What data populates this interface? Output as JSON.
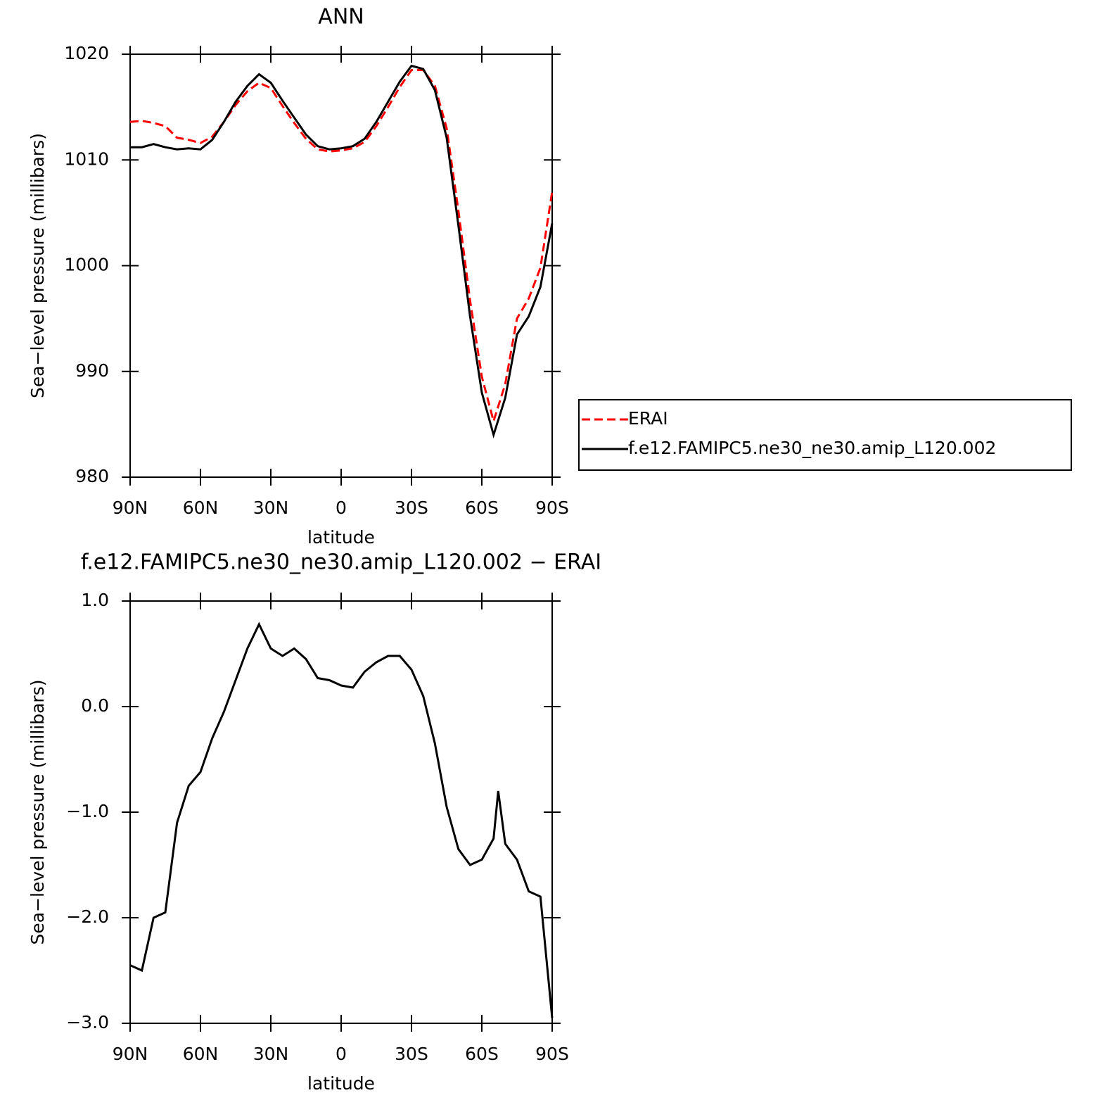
{
  "chart_data": [
    {
      "type": "line",
      "title": "ANN",
      "xlabel": "latitude",
      "ylabel": "Sea−level pressure (millibars)",
      "x": [
        90,
        85,
        80,
        75,
        70,
        65,
        60,
        55,
        50,
        45,
        40,
        35,
        30,
        25,
        20,
        15,
        10,
        5,
        0,
        -5,
        -10,
        -15,
        -20,
        -25,
        -30,
        -35,
        -40,
        -45,
        -50,
        -55,
        -60,
        -65,
        -70,
        -75,
        -80,
        -85,
        -90
      ],
      "series": [
        {
          "name": "ERAI",
          "color": "#ff0000",
          "dash": true,
          "values": [
            1013.6,
            1013.7,
            1013.5,
            1013.2,
            1012.1,
            1011.9,
            1011.6,
            1012.2,
            1013.6,
            1015.2,
            1016.5,
            1017.3,
            1016.8,
            1015.1,
            1013.5,
            1012.0,
            1011.0,
            1010.8,
            1010.9,
            1011.1,
            1011.7,
            1013.2,
            1015.0,
            1016.9,
            1018.5,
            1018.5,
            1017.0,
            1013.0,
            1005.2,
            996.7,
            989.5,
            985.3,
            988.8,
            995.0,
            996.9,
            999.8,
            1007.0
          ]
        },
        {
          "name": "f.e12.FAMIPC5.ne30_ne30.amip_L120.002",
          "color": "#000000",
          "dash": false,
          "values": [
            1011.2,
            1011.2,
            1011.5,
            1011.2,
            1011.0,
            1011.1,
            1011.0,
            1011.9,
            1013.6,
            1015.5,
            1017.0,
            1018.1,
            1017.3,
            1015.6,
            1014.0,
            1012.4,
            1011.3,
            1011.0,
            1011.1,
            1011.3,
            1012.0,
            1013.6,
            1015.5,
            1017.4,
            1018.9,
            1018.6,
            1016.6,
            1012.1,
            1003.8,
            995.2,
            988.0,
            984.0,
            987.5,
            993.5,
            995.2,
            998.0,
            1004.0
          ]
        }
      ],
      "xlim": [
        90,
        -90
      ],
      "xticks": [
        {
          "value": 90,
          "label": "90N"
        },
        {
          "value": 60,
          "label": "60N"
        },
        {
          "value": 30,
          "label": "30N"
        },
        0,
        {
          "value": -30,
          "label": "30S"
        },
        {
          "value": -60,
          "label": "60S"
        },
        {
          "value": -90,
          "label": "90S"
        }
      ],
      "ylim": [
        980,
        1020
      ],
      "yticks": [
        980,
        990,
        1000,
        1010,
        1020
      ],
      "legend": "right"
    },
    {
      "type": "line",
      "title": "f.e12.FAMIPC5.ne30_ne30.amip_L120.002 − ERAI",
      "xlabel": "latitude",
      "ylabel": "Sea−level pressure (millibars)",
      "x": [
        90,
        85,
        80,
        75,
        70,
        65,
        60,
        55,
        50,
        45,
        40,
        35,
        30,
        25,
        20,
        15,
        10,
        5,
        0,
        -5,
        -10,
        -15,
        -20,
        -25,
        -30,
        -35,
        -40,
        -45,
        -50,
        -55,
        -60,
        -65,
        -67,
        -70,
        -75,
        -80,
        -85,
        -90
      ],
      "series": [
        {
          "color": "#000000",
          "dash": false,
          "values": [
            -2.45,
            -2.5,
            -2.0,
            -1.95,
            -1.1,
            -0.75,
            -0.62,
            -0.3,
            -0.05,
            0.25,
            0.55,
            0.78,
            0.55,
            0.48,
            0.55,
            0.45,
            0.27,
            0.25,
            0.2,
            0.18,
            0.33,
            0.42,
            0.48,
            0.48,
            0.35,
            0.1,
            -0.35,
            -0.95,
            -1.35,
            -1.5,
            -1.45,
            -1.25,
            -0.8,
            -1.3,
            -1.45,
            -1.75,
            -1.8,
            -2.95
          ]
        }
      ],
      "xlim": [
        90,
        -90
      ],
      "xticks": [
        {
          "value": 90,
          "label": "90N"
        },
        {
          "value": 60,
          "label": "60N"
        },
        {
          "value": 30,
          "label": "30N"
        },
        0,
        {
          "value": -30,
          "label": "30S"
        },
        {
          "value": -60,
          "label": "60S"
        },
        {
          "value": -90,
          "label": "90S"
        }
      ],
      "ylim": [
        -3,
        1
      ],
      "yticks": [
        {
          "value": -3,
          "label": "−3.0"
        },
        {
          "value": -2,
          "label": "−2.0"
        },
        {
          "value": -1,
          "label": "−1.0"
        },
        {
          "value": 0,
          "label": "0.0"
        },
        {
          "value": 1,
          "label": "1.0"
        }
      ]
    }
  ]
}
